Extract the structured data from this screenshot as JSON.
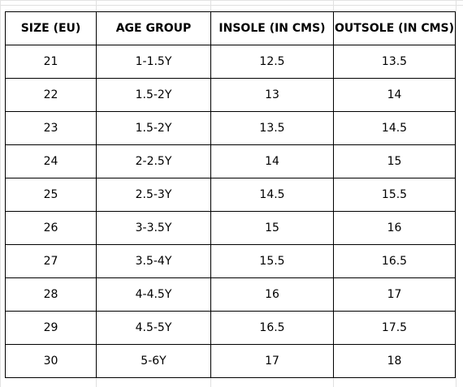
{
  "table": {
    "headers": [
      "SIZE (EU)",
      "AGE GROUP",
      "INSOLE (IN CMS)",
      "OUTSOLE (IN CMS)"
    ],
    "rows": [
      [
        "21",
        "1-1.5Y",
        "12.5",
        "13.5"
      ],
      [
        "22",
        "1.5-2Y",
        "13",
        "14"
      ],
      [
        "23",
        "1.5-2Y",
        "13.5",
        "14.5"
      ],
      [
        "24",
        "2-2.5Y",
        "14",
        "15"
      ],
      [
        "25",
        "2.5-3Y",
        "14.5",
        "15.5"
      ],
      [
        "26",
        "3-3.5Y",
        "15",
        "16"
      ],
      [
        "27",
        "3.5-4Y",
        "15.5",
        "16.5"
      ],
      [
        "28",
        "4-4.5Y",
        "16",
        "17"
      ],
      [
        "29",
        "4.5-5Y",
        "16.5",
        "17.5"
      ],
      [
        "30",
        "5-6Y",
        "17",
        "18"
      ]
    ]
  },
  "colors": {
    "border": "#000000",
    "gridline": "#e0e0e0",
    "background": "#ffffff"
  }
}
